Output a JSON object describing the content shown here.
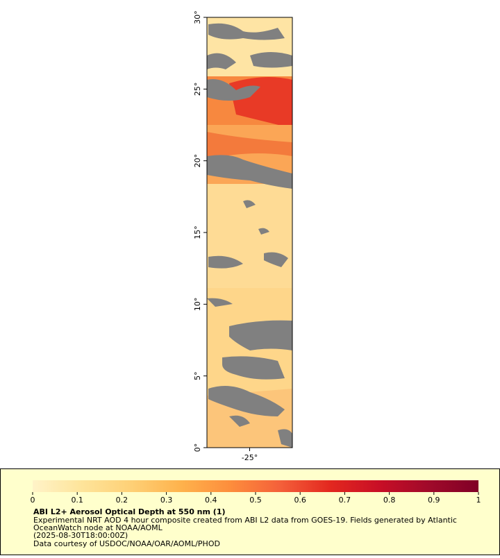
{
  "map": {
    "yaxis": {
      "range": [
        0,
        30
      ],
      "ticks": [
        {
          "value": 0,
          "label": "0°"
        },
        {
          "value": 5,
          "label": "5°"
        },
        {
          "value": 10,
          "label": "10°"
        },
        {
          "value": 15,
          "label": "15°"
        },
        {
          "value": 20,
          "label": "20°"
        },
        {
          "value": 25,
          "label": "25°"
        },
        {
          "value": 30,
          "label": "30°"
        }
      ]
    },
    "xaxis": {
      "range": [
        -28,
        -22
      ],
      "ticks": [
        {
          "value": -25,
          "label": "-25°"
        }
      ]
    }
  },
  "colorbar": {
    "range": [
      0,
      1
    ],
    "ticks": [
      0,
      0.1,
      0.2,
      0.3,
      0.4,
      0.5,
      0.6,
      0.7,
      0.8,
      0.9,
      1
    ],
    "colors": [
      "#fff3c8",
      "#fee49a",
      "#fed076",
      "#feb24c",
      "#fd8d3c",
      "#f4603a",
      "#e3281f",
      "#c80f26",
      "#a00a2a",
      "#800026"
    ]
  },
  "caption": {
    "title": "ABI L2+ Aerosol Optical Depth at 550 nm (1)",
    "lines": [
      "Experimental NRT AOD 4 hour composite created from ABI L2 data from GOES-19. Fields generated by Atlantic",
      "OceanWatch node at NOAA/AOML",
      "(2025-08-30T18:00:00Z)",
      "Data courtesy of USDOC/NOAA/OAR/AOML/PHOD"
    ]
  }
}
